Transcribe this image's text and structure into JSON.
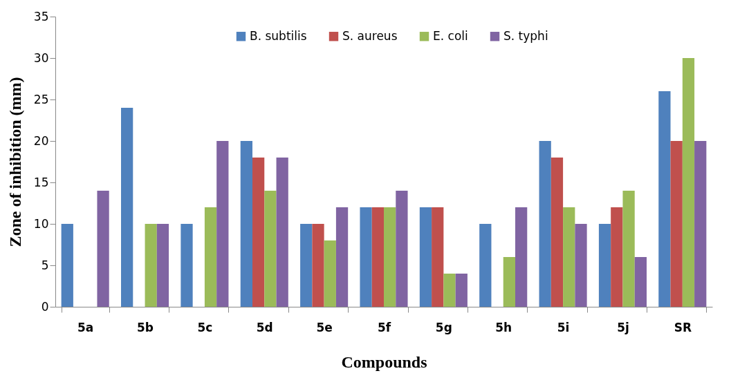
{
  "chart_data": {
    "type": "bar",
    "xlabel": "Compounds",
    "ylabel": "Zone of inhibition (mm)",
    "categories": [
      "5a",
      "5b",
      "5c",
      "5d",
      "5e",
      "5f",
      "5g",
      "5h",
      "5i",
      "5j",
      "SR"
    ],
    "series": [
      {
        "name": "B. subtilis",
        "color": "#4f81bd",
        "values": [
          10,
          24,
          10,
          20,
          10,
          12,
          12,
          10,
          20,
          10,
          26
        ]
      },
      {
        "name": "S. aureus",
        "color": "#c0504d",
        "values": [
          null,
          null,
          null,
          18,
          10,
          12,
          12,
          null,
          18,
          12,
          20
        ]
      },
      {
        "name": "E. coli",
        "color": "#9bbb59",
        "values": [
          null,
          10,
          12,
          14,
          8,
          12,
          4,
          6,
          12,
          14,
          30
        ]
      },
      {
        "name": "S. typhi",
        "color": "#8064a2",
        "values": [
          14,
          10,
          20,
          18,
          12,
          14,
          4,
          12,
          10,
          6,
          20
        ]
      }
    ],
    "ylim": [
      0,
      35
    ],
    "yticks": [
      0,
      5,
      10,
      15,
      20,
      25,
      30,
      35
    ],
    "grid": false,
    "legend": "top"
  }
}
